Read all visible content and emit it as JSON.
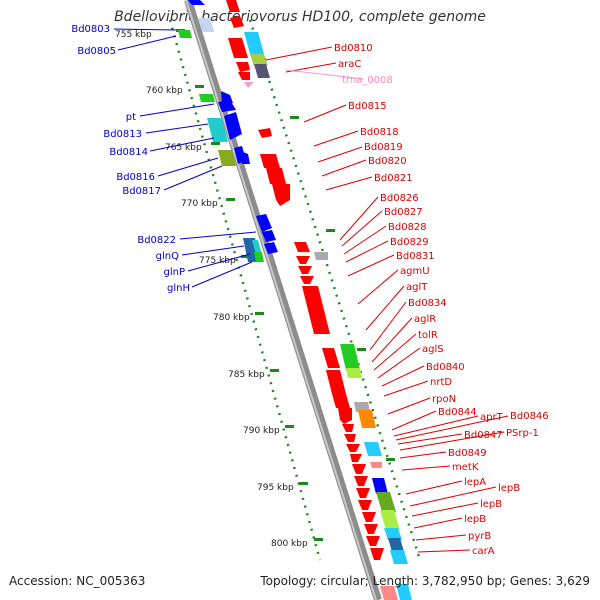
{
  "title": "Bdellovibrio bacteriovorus HD100, complete genome",
  "accession": "Accession: NC_005363",
  "topology": "Topology: circular; Length: 3,782,950 bp; Genes: 3,629",
  "colors": {
    "forward": "#0000ff",
    "reverse": "#ff0000",
    "rna": "#ff99cc",
    "tick": "#1a8a1a",
    "backbone": "#888888"
  },
  "kbp_ticks": [
    "755 kbp",
    "760 kbp",
    "765 kbp",
    "770 kbp",
    "775 kbp",
    "780 kbp",
    "785 kbp",
    "790 kbp",
    "795 kbp",
    "800 kbp"
  ],
  "left_labels": [
    "Bd0803",
    "Bd0805",
    "pt",
    "Bd0813",
    "Bd0814",
    "Bd0816",
    "Bd0817",
    "Bd0822",
    "glnQ",
    "glnP",
    "glnH"
  ],
  "right_labels": [
    "Bd0810",
    "araC",
    "Bd0815",
    "Bd0818",
    "Bd0819",
    "Bd0820",
    "Bd0821",
    "Bd0826",
    "Bd0827",
    "Bd0828",
    "Bd0829",
    "Bd0831",
    "agmU",
    "aglT",
    "Bd0834",
    "aglR",
    "tolR",
    "aglS",
    "Bd0840",
    "nrtD",
    "rpoN",
    "Bd0844",
    "aprT",
    "Bd0846",
    "Bd0847",
    "PSrp-1",
    "Bd0849",
    "metK",
    "lepA",
    "lepB",
    "lepB",
    "lepB",
    "pyrB",
    "carA"
  ],
  "rna_label": "trna_0008"
}
